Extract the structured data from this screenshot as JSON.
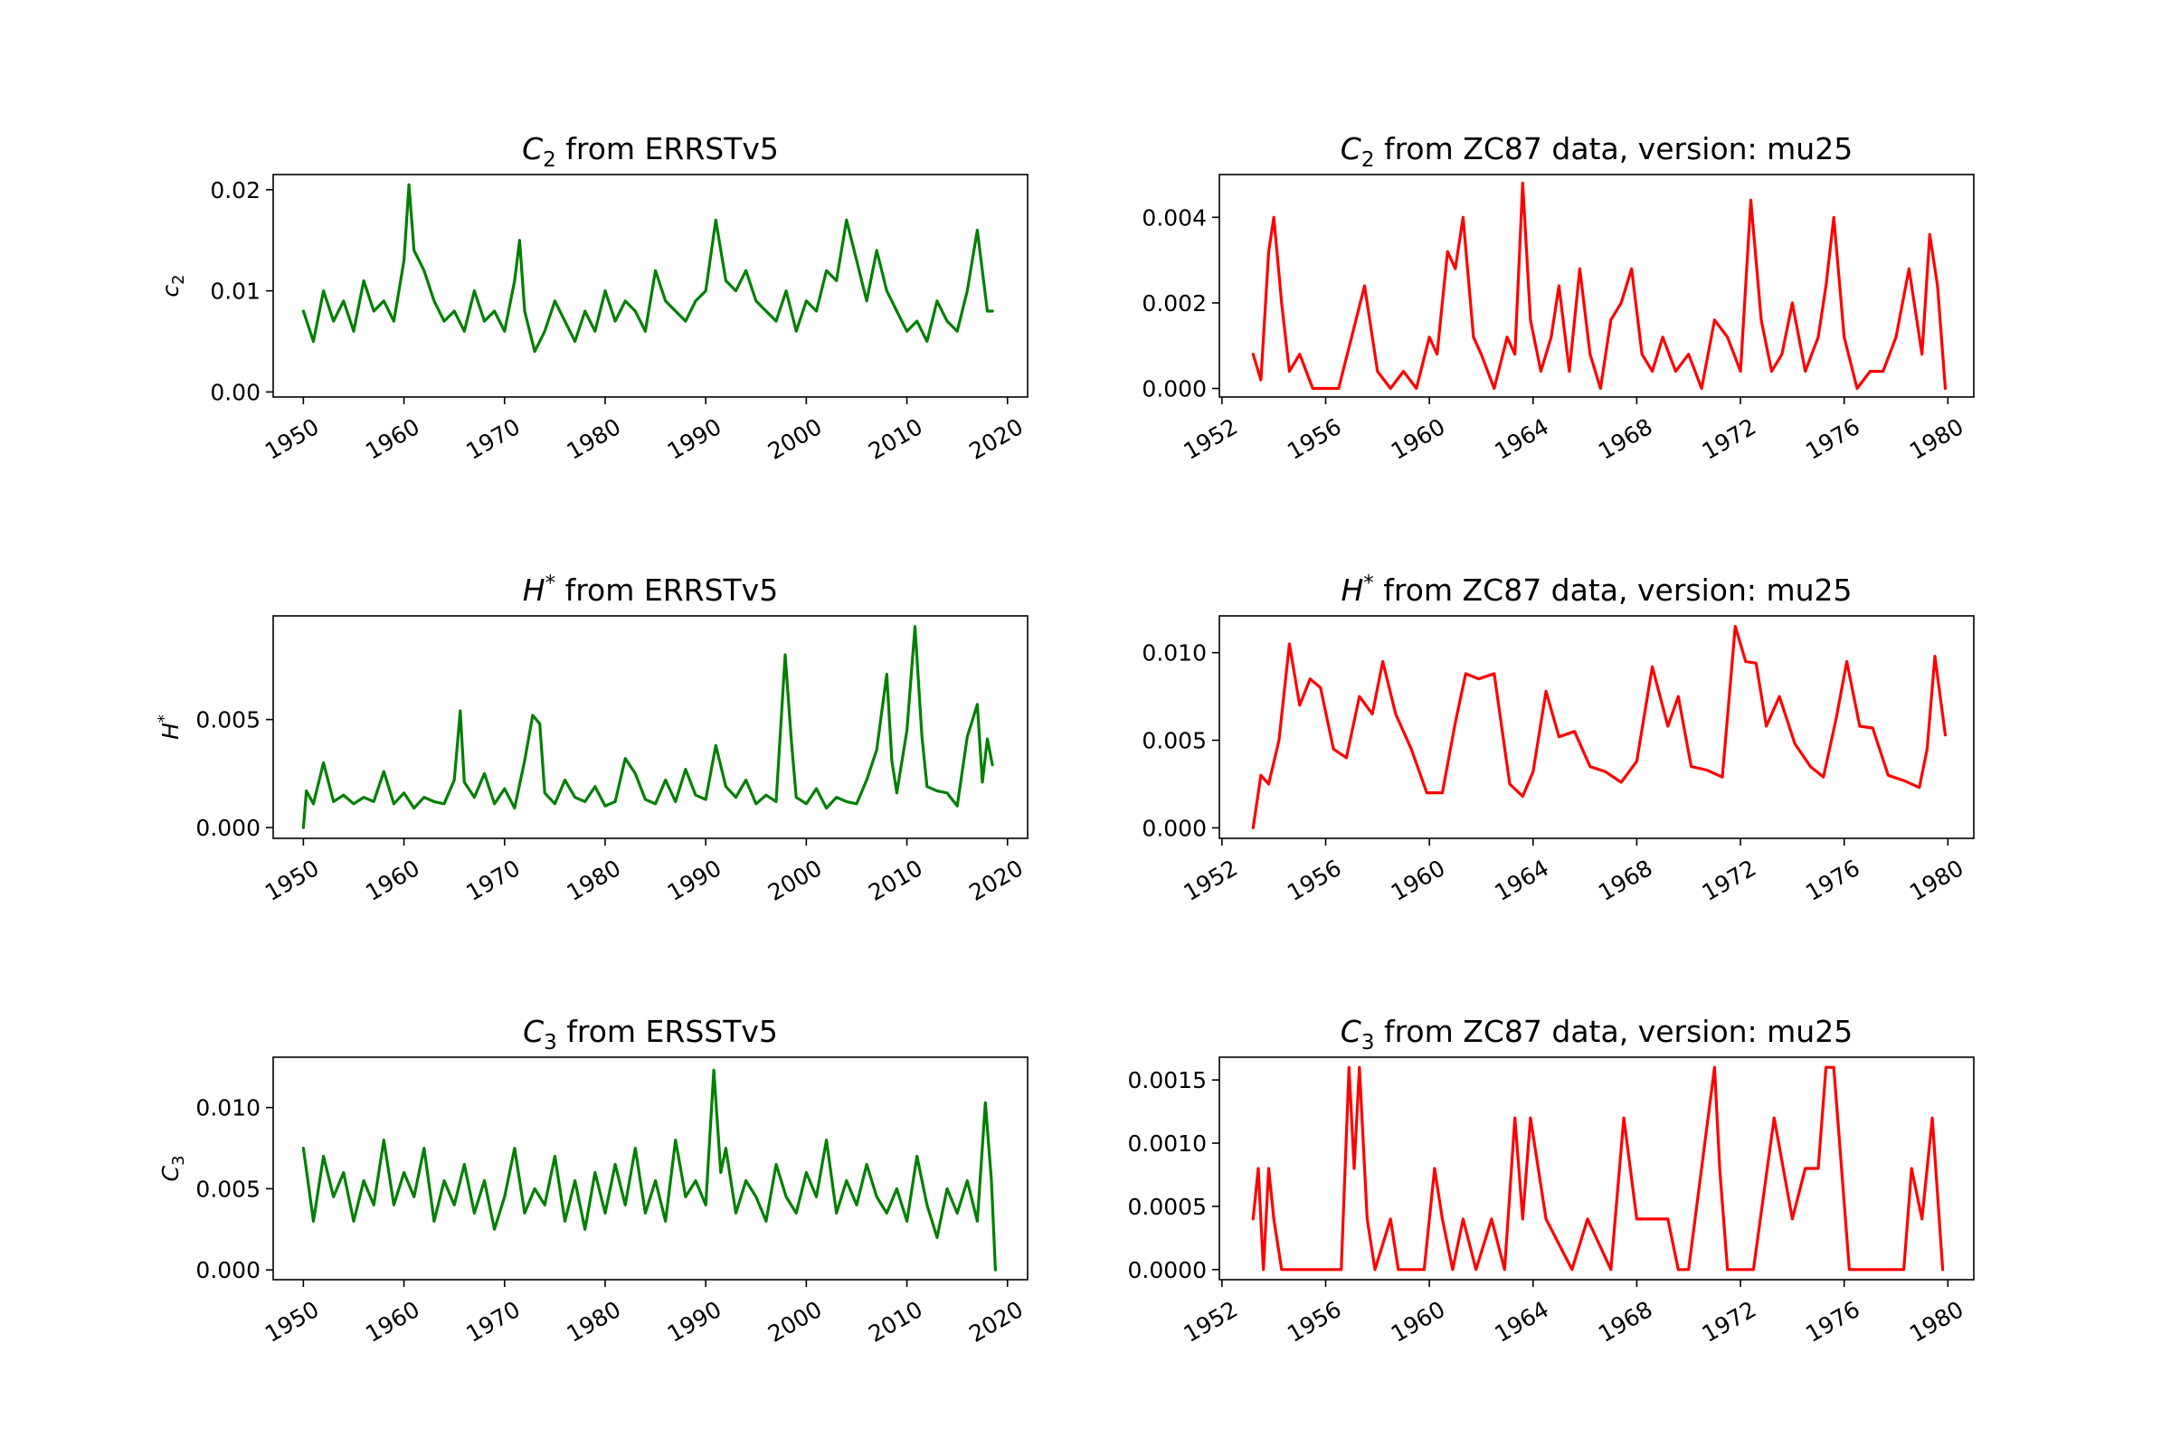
{
  "colors": {
    "green": "#008000",
    "red": "#ff0000"
  },
  "chart_data": [
    {
      "type": "line",
      "title_main": "C",
      "title_sub": "2",
      "title_rest": " from ERRSTv5",
      "ylabel_main": "c",
      "ylabel_sub": "2",
      "color": "green",
      "xlim": [
        1947,
        2022
      ],
      "ylim": [
        -0.0005,
        0.0215
      ],
      "xticks": [
        1950,
        1960,
        1970,
        1980,
        1990,
        2000,
        2010,
        2020
      ],
      "xtick_labels": [
        "1950",
        "1960",
        "1970",
        "1980",
        "1990",
        "2000",
        "2010",
        "2020"
      ],
      "yticks": [
        0.0,
        0.01,
        0.02
      ],
      "ytick_labels": [
        "0.00",
        "0.01",
        "0.02"
      ],
      "x": [
        1950,
        1951,
        1952,
        1953,
        1954,
        1955,
        1956,
        1957,
        1958,
        1959,
        1960,
        1960.5,
        1961,
        1962,
        1963,
        1964,
        1965,
        1966,
        1967,
        1968,
        1969,
        1970,
        1971,
        1971.5,
        1972,
        1973,
        1974,
        1975,
        1976,
        1977,
        1978,
        1979,
        1980,
        1981,
        1982,
        1983,
        1984,
        1985,
        1986,
        1987,
        1988,
        1989,
        1990,
        1991,
        1992,
        1993,
        1994,
        1995,
        1996,
        1997,
        1998,
        1999,
        2000,
        2001,
        2002,
        2003,
        2004,
        2005,
        2006,
        2007,
        2008,
        2009,
        2010,
        2011,
        2012,
        2013,
        2014,
        2015,
        2016,
        2017,
        2018,
        2018.5
      ],
      "y": [
        0.008,
        0.005,
        0.01,
        0.007,
        0.009,
        0.006,
        0.011,
        0.008,
        0.009,
        0.007,
        0.013,
        0.0205,
        0.014,
        0.012,
        0.009,
        0.007,
        0.008,
        0.006,
        0.01,
        0.007,
        0.008,
        0.006,
        0.011,
        0.015,
        0.008,
        0.004,
        0.006,
        0.009,
        0.007,
        0.005,
        0.008,
        0.006,
        0.01,
        0.007,
        0.009,
        0.008,
        0.006,
        0.012,
        0.009,
        0.008,
        0.007,
        0.009,
        0.01,
        0.017,
        0.011,
        0.01,
        0.012,
        0.009,
        0.008,
        0.007,
        0.01,
        0.006,
        0.009,
        0.008,
        0.012,
        0.011,
        0.017,
        0.013,
        0.009,
        0.014,
        0.01,
        0.008,
        0.006,
        0.007,
        0.005,
        0.009,
        0.007,
        0.006,
        0.01,
        0.016,
        0.008,
        0.008
      ]
    },
    {
      "type": "line",
      "title_main": "C",
      "title_sub": "2",
      "title_rest": " from ZC87 data, version: mu25",
      "ylabel_main": "",
      "ylabel_sub": "",
      "color": "red",
      "xlim": [
        1951.9,
        1981.0
      ],
      "ylim": [
        -0.0002,
        0.005
      ],
      "xticks": [
        1952,
        1956,
        1960,
        1964,
        1968,
        1972,
        1976,
        1980
      ],
      "xtick_labels": [
        "1952",
        "1956",
        "1960",
        "1964",
        "1968",
        "1972",
        "1976",
        "1980"
      ],
      "yticks": [
        0.0,
        0.002,
        0.004
      ],
      "ytick_labels": [
        "0.000",
        "0.002",
        "0.004"
      ],
      "x": [
        1953.2,
        1953.5,
        1953.8,
        1954.0,
        1954.3,
        1954.6,
        1955.0,
        1955.5,
        1956.5,
        1957.0,
        1957.5,
        1958.0,
        1958.5,
        1959.0,
        1959.5,
        1960.0,
        1960.3,
        1960.7,
        1961.0,
        1961.3,
        1961.7,
        1962.0,
        1962.5,
        1963.0,
        1963.3,
        1963.6,
        1963.9,
        1964.3,
        1964.7,
        1965.0,
        1965.4,
        1965.8,
        1966.2,
        1966.6,
        1967.0,
        1967.4,
        1967.8,
        1968.2,
        1968.6,
        1969.0,
        1969.5,
        1970.0,
        1970.5,
        1971.0,
        1971.5,
        1972.0,
        1972.4,
        1972.8,
        1973.2,
        1973.6,
        1974.0,
        1974.5,
        1975.0,
        1975.3,
        1975.6,
        1976.0,
        1976.5,
        1977.0,
        1977.5,
        1978.0,
        1978.5,
        1979.0,
        1979.3,
        1979.6,
        1979.9
      ],
      "y": [
        0.0008,
        0.0002,
        0.0032,
        0.004,
        0.002,
        0.0004,
        0.0008,
        0.0,
        0.0,
        0.0012,
        0.0024,
        0.0004,
        0.0,
        0.0004,
        0.0,
        0.0012,
        0.0008,
        0.0032,
        0.0028,
        0.004,
        0.0012,
        0.0008,
        0.0,
        0.0012,
        0.0008,
        0.0048,
        0.0016,
        0.0004,
        0.0012,
        0.0024,
        0.0004,
        0.0028,
        0.0008,
        0.0,
        0.0016,
        0.002,
        0.0028,
        0.0008,
        0.0004,
        0.0012,
        0.0004,
        0.0008,
        0.0,
        0.0016,
        0.0012,
        0.0004,
        0.0044,
        0.0016,
        0.0004,
        0.0008,
        0.002,
        0.0004,
        0.0012,
        0.0024,
        0.004,
        0.0012,
        0.0,
        0.0004,
        0.0004,
        0.0012,
        0.0028,
        0.0008,
        0.0036,
        0.0024,
        0.0
      ]
    },
    {
      "type": "line",
      "title_main": "H",
      "title_sup": "*",
      "title_rest": " from ERRSTv5",
      "ylabel_main": "H",
      "ylabel_sup": "*",
      "color": "green",
      "xlim": [
        1947,
        2022
      ],
      "ylim": [
        -0.0005,
        0.0098
      ],
      "xticks": [
        1950,
        1960,
        1970,
        1980,
        1990,
        2000,
        2010,
        2020
      ],
      "xtick_labels": [
        "1950",
        "1960",
        "1970",
        "1980",
        "1990",
        "2000",
        "2010",
        "2020"
      ],
      "yticks": [
        0.0,
        0.005
      ],
      "ytick_labels": [
        "0.000",
        "0.005"
      ],
      "x": [
        1950,
        1950.3,
        1951,
        1952,
        1953,
        1954,
        1955,
        1956,
        1957,
        1958,
        1959,
        1960,
        1961,
        1962,
        1963,
        1964,
        1965,
        1965.6,
        1966,
        1967,
        1968,
        1969,
        1970,
        1971,
        1972,
        1972.8,
        1973.5,
        1974,
        1975,
        1976,
        1977,
        1978,
        1979,
        1980,
        1981,
        1982,
        1983,
        1984,
        1985,
        1986,
        1987,
        1988,
        1989,
        1990,
        1991,
        1992,
        1993,
        1994,
        1995,
        1996,
        1997,
        1997.9,
        1998.5,
        1999,
        2000,
        2001,
        2002,
        2003,
        2004,
        2005,
        2006,
        2007,
        2008,
        2008.5,
        2009,
        2010,
        2010.8,
        2011.5,
        2012,
        2013,
        2014,
        2015,
        2016,
        2017,
        2017.5,
        2018,
        2018.5
      ],
      "y": [
        0.0,
        0.0017,
        0.0011,
        0.003,
        0.0012,
        0.0015,
        0.0011,
        0.0014,
        0.0012,
        0.0026,
        0.0011,
        0.0016,
        0.0009,
        0.0014,
        0.0012,
        0.0011,
        0.0022,
        0.0054,
        0.0021,
        0.0014,
        0.0025,
        0.0011,
        0.0018,
        0.0009,
        0.0031,
        0.0052,
        0.0048,
        0.0016,
        0.0011,
        0.0022,
        0.0014,
        0.0012,
        0.0019,
        0.001,
        0.0012,
        0.0032,
        0.0025,
        0.0013,
        0.0011,
        0.0022,
        0.0012,
        0.0027,
        0.0015,
        0.0013,
        0.0038,
        0.0019,
        0.0014,
        0.0022,
        0.0011,
        0.0015,
        0.0012,
        0.008,
        0.0041,
        0.0014,
        0.0011,
        0.0018,
        0.0009,
        0.0014,
        0.0012,
        0.0011,
        0.0022,
        0.0036,
        0.0071,
        0.0031,
        0.0016,
        0.0045,
        0.0093,
        0.0042,
        0.0019,
        0.0017,
        0.0016,
        0.001,
        0.0042,
        0.0057,
        0.0021,
        0.0041,
        0.0029
      ]
    },
    {
      "type": "line",
      "title_main": "H",
      "title_sup": "*",
      "title_rest": " from ZC87 data, version: mu25",
      "ylabel_main": "",
      "color": "red",
      "xlim": [
        1951.9,
        1981.0
      ],
      "ylim": [
        -0.0006,
        0.0121
      ],
      "xticks": [
        1952,
        1956,
        1960,
        1964,
        1968,
        1972,
        1976,
        1980
      ],
      "xtick_labels": [
        "1952",
        "1956",
        "1960",
        "1964",
        "1968",
        "1972",
        "1976",
        "1980"
      ],
      "yticks": [
        0.0,
        0.005,
        0.01
      ],
      "ytick_labels": [
        "0.000",
        "0.005",
        "0.010"
      ],
      "x": [
        1953.2,
        1953.5,
        1953.8,
        1954.2,
        1954.6,
        1955.0,
        1955.4,
        1955.8,
        1956.3,
        1956.8,
        1957.3,
        1957.8,
        1958.2,
        1958.7,
        1959.3,
        1959.9,
        1960.5,
        1961.0,
        1961.4,
        1961.9,
        1962.5,
        1963.1,
        1963.6,
        1964.0,
        1964.5,
        1965.0,
        1965.6,
        1966.2,
        1966.8,
        1967.4,
        1968.0,
        1968.6,
        1969.2,
        1969.6,
        1970.1,
        1970.7,
        1971.3,
        1971.8,
        1972.2,
        1972.6,
        1973.0,
        1973.5,
        1974.1,
        1974.7,
        1975.2,
        1975.7,
        1976.1,
        1976.6,
        1977.1,
        1977.7,
        1978.3,
        1978.9,
        1979.2,
        1979.5,
        1979.9
      ],
      "y": [
        0.0,
        0.003,
        0.0025,
        0.005,
        0.0105,
        0.007,
        0.0085,
        0.008,
        0.0045,
        0.004,
        0.0075,
        0.0065,
        0.0095,
        0.0065,
        0.0045,
        0.002,
        0.002,
        0.006,
        0.0088,
        0.0085,
        0.0088,
        0.0025,
        0.0018,
        0.0032,
        0.0078,
        0.0052,
        0.0055,
        0.0035,
        0.0032,
        0.0026,
        0.0038,
        0.0092,
        0.0058,
        0.0075,
        0.0035,
        0.0033,
        0.0029,
        0.0115,
        0.0095,
        0.0094,
        0.0058,
        0.0075,
        0.0048,
        0.0035,
        0.0029,
        0.0063,
        0.0095,
        0.0058,
        0.0057,
        0.003,
        0.0027,
        0.0023,
        0.0045,
        0.0098,
        0.0053
      ]
    },
    {
      "type": "line",
      "title_main": "C",
      "title_sub": "3",
      "title_rest": " from ERSSTv5",
      "ylabel_main": "C",
      "ylabel_sub": "3",
      "color": "green",
      "xlim": [
        1947,
        2022
      ],
      "ylim": [
        -0.0006,
        0.0131
      ],
      "xticks": [
        1950,
        1960,
        1970,
        1980,
        1990,
        2000,
        2010,
        2020
      ],
      "xtick_labels": [
        "1950",
        "1960",
        "1970",
        "1980",
        "1990",
        "2000",
        "2010",
        "2020"
      ],
      "yticks": [
        0.0,
        0.005,
        0.01
      ],
      "ytick_labels": [
        "0.000",
        "0.005",
        "0.010"
      ],
      "x": [
        1950,
        1951,
        1952,
        1953,
        1954,
        1955,
        1956,
        1957,
        1958,
        1959,
        1960,
        1961,
        1962,
        1963,
        1964,
        1965,
        1966,
        1967,
        1968,
        1969,
        1970,
        1971,
        1972,
        1973,
        1974,
        1975,
        1976,
        1977,
        1978,
        1979,
        1980,
        1981,
        1982,
        1983,
        1984,
        1985,
        1986,
        1987,
        1988,
        1989,
        1990,
        1990.8,
        1991.5,
        1992,
        1993,
        1994,
        1995,
        1996,
        1997,
        1998,
        1999,
        2000,
        2001,
        2002,
        2003,
        2004,
        2005,
        2006,
        2007,
        2008,
        2009,
        2010,
        2011,
        2012,
        2013,
        2014,
        2015,
        2016,
        2017,
        2017.8,
        2018.4,
        2018.8
      ],
      "y": [
        0.0075,
        0.003,
        0.007,
        0.0045,
        0.006,
        0.003,
        0.0055,
        0.004,
        0.008,
        0.004,
        0.006,
        0.0045,
        0.0075,
        0.003,
        0.0055,
        0.004,
        0.0065,
        0.0035,
        0.0055,
        0.0025,
        0.0045,
        0.0075,
        0.0035,
        0.005,
        0.004,
        0.007,
        0.003,
        0.0055,
        0.0025,
        0.006,
        0.0035,
        0.0065,
        0.004,
        0.0075,
        0.0035,
        0.0055,
        0.003,
        0.008,
        0.0045,
        0.0055,
        0.004,
        0.0123,
        0.006,
        0.0075,
        0.0035,
        0.0055,
        0.0045,
        0.003,
        0.0065,
        0.0045,
        0.0035,
        0.006,
        0.0045,
        0.008,
        0.0035,
        0.0055,
        0.004,
        0.0065,
        0.0045,
        0.0035,
        0.005,
        0.003,
        0.007,
        0.004,
        0.002,
        0.005,
        0.0035,
        0.0055,
        0.003,
        0.0103,
        0.0055,
        0.0
      ]
    },
    {
      "type": "line",
      "title_main": "C",
      "title_sub": "3",
      "title_rest": " from ZC87 data, version: mu25",
      "ylabel_main": "",
      "color": "red",
      "xlim": [
        1951.9,
        1981.0
      ],
      "ylim": [
        -8e-05,
        0.00168
      ],
      "xticks": [
        1952,
        1956,
        1960,
        1964,
        1968,
        1972,
        1976,
        1980
      ],
      "xtick_labels": [
        "1952",
        "1956",
        "1960",
        "1964",
        "1968",
        "1972",
        "1976",
        "1980"
      ],
      "yticks": [
        0.0,
        0.0005,
        0.001,
        0.0015
      ],
      "ytick_labels": [
        "0.0000",
        "0.0005",
        "0.0010",
        "0.0015"
      ],
      "x": [
        1953.2,
        1953.4,
        1953.6,
        1953.8,
        1954.0,
        1954.3,
        1956.6,
        1956.9,
        1957.1,
        1957.3,
        1957.6,
        1957.9,
        1958.5,
        1958.8,
        1959.8,
        1960.2,
        1960.5,
        1960.9,
        1961.3,
        1961.8,
        1962.4,
        1962.9,
        1963.3,
        1963.6,
        1963.9,
        1964.2,
        1964.5,
        1965.5,
        1966.1,
        1967.0,
        1967.5,
        1968.0,
        1968.6,
        1969.2,
        1969.6,
        1970.0,
        1971.0,
        1971.2,
        1971.5,
        1972.5,
        1973.3,
        1974.0,
        1974.5,
        1975.0,
        1975.3,
        1975.6,
        1975.9,
        1976.2,
        1978.3,
        1978.6,
        1979.0,
        1979.4,
        1979.8
      ],
      "y": [
        0.0004,
        0.0008,
        0.0,
        0.0008,
        0.0004,
        0.0,
        0.0,
        0.0016,
        0.0008,
        0.0016,
        0.0004,
        0.0,
        0.0004,
        0.0,
        0.0,
        0.0008,
        0.0004,
        0.0,
        0.0004,
        0.0,
        0.0004,
        0.0,
        0.0012,
        0.0004,
        0.0012,
        0.0008,
        0.0004,
        0.0,
        0.0004,
        0.0,
        0.0012,
        0.0004,
        0.0004,
        0.0004,
        0.0,
        0.0,
        0.0016,
        0.0008,
        0.0,
        0.0,
        0.0012,
        0.0004,
        0.0008,
        0.0008,
        0.0016,
        0.0016,
        0.0008,
        0.0,
        0.0,
        0.0008,
        0.0004,
        0.0012,
        0.0
      ]
    }
  ]
}
